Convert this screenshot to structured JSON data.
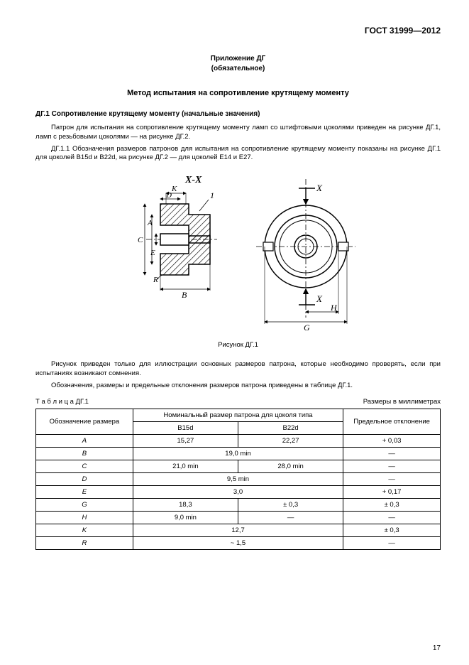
{
  "header": "ГОСТ 31999—2012",
  "appendix_line1": "Приложение ДГ",
  "appendix_line2": "(обязательное)",
  "title": "Метод испытания на сопротивление крутящему моменту",
  "section_label": "ДГ.1  Сопротивление крутящему моменту (начальные значения)",
  "para1": "Патрон для испытания на сопротивление крутящему моменту ламп со штифтовыми цоколями приведен на рисунке ДГ.1, ламп с резьбовыми цоколями — на рисунке ДГ.2.",
  "para2": "ДГ.1.1  Обозначения размеров патронов для испытания на сопротивление крутящему моменту показаны на рисунке ДГ.1 для цоколей B15d и B22d, на рисунке ДГ.2 — для цоколей E14 и E27.",
  "fig_caption": "Рисунок ДГ.1",
  "notes1": "Рисунок приведен только для иллюстрации основных размеров патрона, которые необходимо проверять, если при испытаниях возникают сомнения.",
  "notes2": "Обозначения, размеры и предельные отклонения размеров патрона приведены в таблице ДГ.1.",
  "table_label": "Т а б л и ц а  ДГ.1",
  "table_units": "Размеры в миллиметрах",
  "thead": {
    "c1": "Обозначение размера",
    "c2": "Номинальный размер патрона для цоколя типа",
    "c2a": "B15d",
    "c2b": "B22d",
    "c3": "Предельное отклонение"
  },
  "rows": [
    {
      "k": "A",
      "a": "15,27",
      "b": "22,27",
      "t": "+ 0,03"
    },
    {
      "k": "B",
      "a": "19,0  min",
      "b": "",
      "t": "—",
      "merge": true
    },
    {
      "k": "C",
      "a": "21,0  min",
      "b": "28,0  min",
      "t": "—"
    },
    {
      "k": "D",
      "a": "9,5  min",
      "b": "",
      "t": "—",
      "merge": true
    },
    {
      "k": "E",
      "a": "3,0",
      "b": "",
      "t": "+ 0,17",
      "merge": true
    },
    {
      "k": "G",
      "a": "18,3",
      "b": "± 0,3",
      "t": "± 0,3"
    },
    {
      "k": "H",
      "a": "9,0  min",
      "b": "—",
      "t": "—"
    },
    {
      "k": "K",
      "a": "12,7",
      "b": "",
      "t": "± 0,3",
      "merge": true
    },
    {
      "k": "R",
      "a": "~ 1,5",
      "b": "",
      "t": "—",
      "merge": true
    }
  ],
  "page_number": "17",
  "figure": {
    "section_label": "X-X",
    "dim_labels_left": [
      "K",
      "D",
      "1",
      "A",
      "C",
      "E",
      "R",
      "B"
    ],
    "dim_labels_right": [
      "X",
      "X",
      "H",
      "G"
    ],
    "hatch_color": "#000000",
    "line_color": "#000000",
    "bg": "#ffffff",
    "italic_font": "italic 14px Times"
  }
}
